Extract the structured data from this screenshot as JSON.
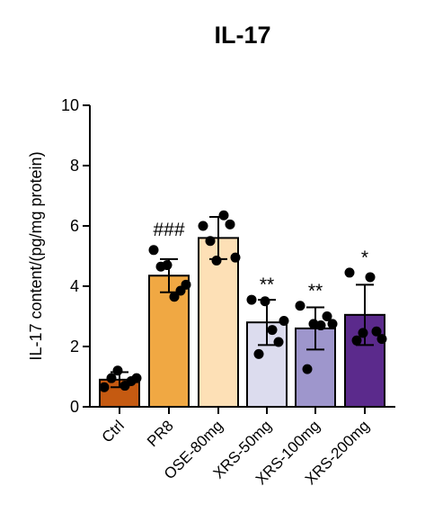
{
  "chart_data": {
    "type": "bar",
    "title": "IL-17",
    "ylabel": "IL-17 content/(pg/mg protein)",
    "xlabel": "",
    "ylim": [
      0,
      10
    ],
    "yticks": [
      0,
      2,
      4,
      6,
      8,
      10
    ],
    "grid": false,
    "categories": [
      "Ctrl",
      "PR8",
      "OSE-80mg",
      "XRS-50mg",
      "XRS-100mg",
      "XRS-200mg"
    ],
    "values": [
      0.9,
      4.35,
      5.6,
      2.8,
      2.6,
      3.05
    ],
    "errors": [
      0.25,
      0.55,
      0.7,
      0.75,
      0.7,
      1.0
    ],
    "significance": [
      "",
      "###",
      "",
      "**",
      "**",
      "*"
    ],
    "points": [
      [
        0.65,
        0.95,
        1.2,
        0.7,
        0.85,
        0.95
      ],
      [
        5.2,
        4.65,
        4.7,
        3.65,
        3.85,
        4.05
      ],
      [
        6.0,
        5.5,
        4.85,
        6.35,
        6.05,
        4.95
      ],
      [
        3.55,
        1.75,
        3.5,
        2.55,
        2.15,
        2.85
      ],
      [
        3.35,
        1.25,
        2.75,
        2.7,
        3.0,
        2.75
      ],
      [
        4.45,
        2.2,
        2.45,
        4.3,
        2.5,
        2.25
      ]
    ],
    "colors": [
      "#c55a11",
      "#f0a843",
      "#fde0b6",
      "#dcdcee",
      "#9e96cc",
      "#5b2a8c"
    ]
  }
}
